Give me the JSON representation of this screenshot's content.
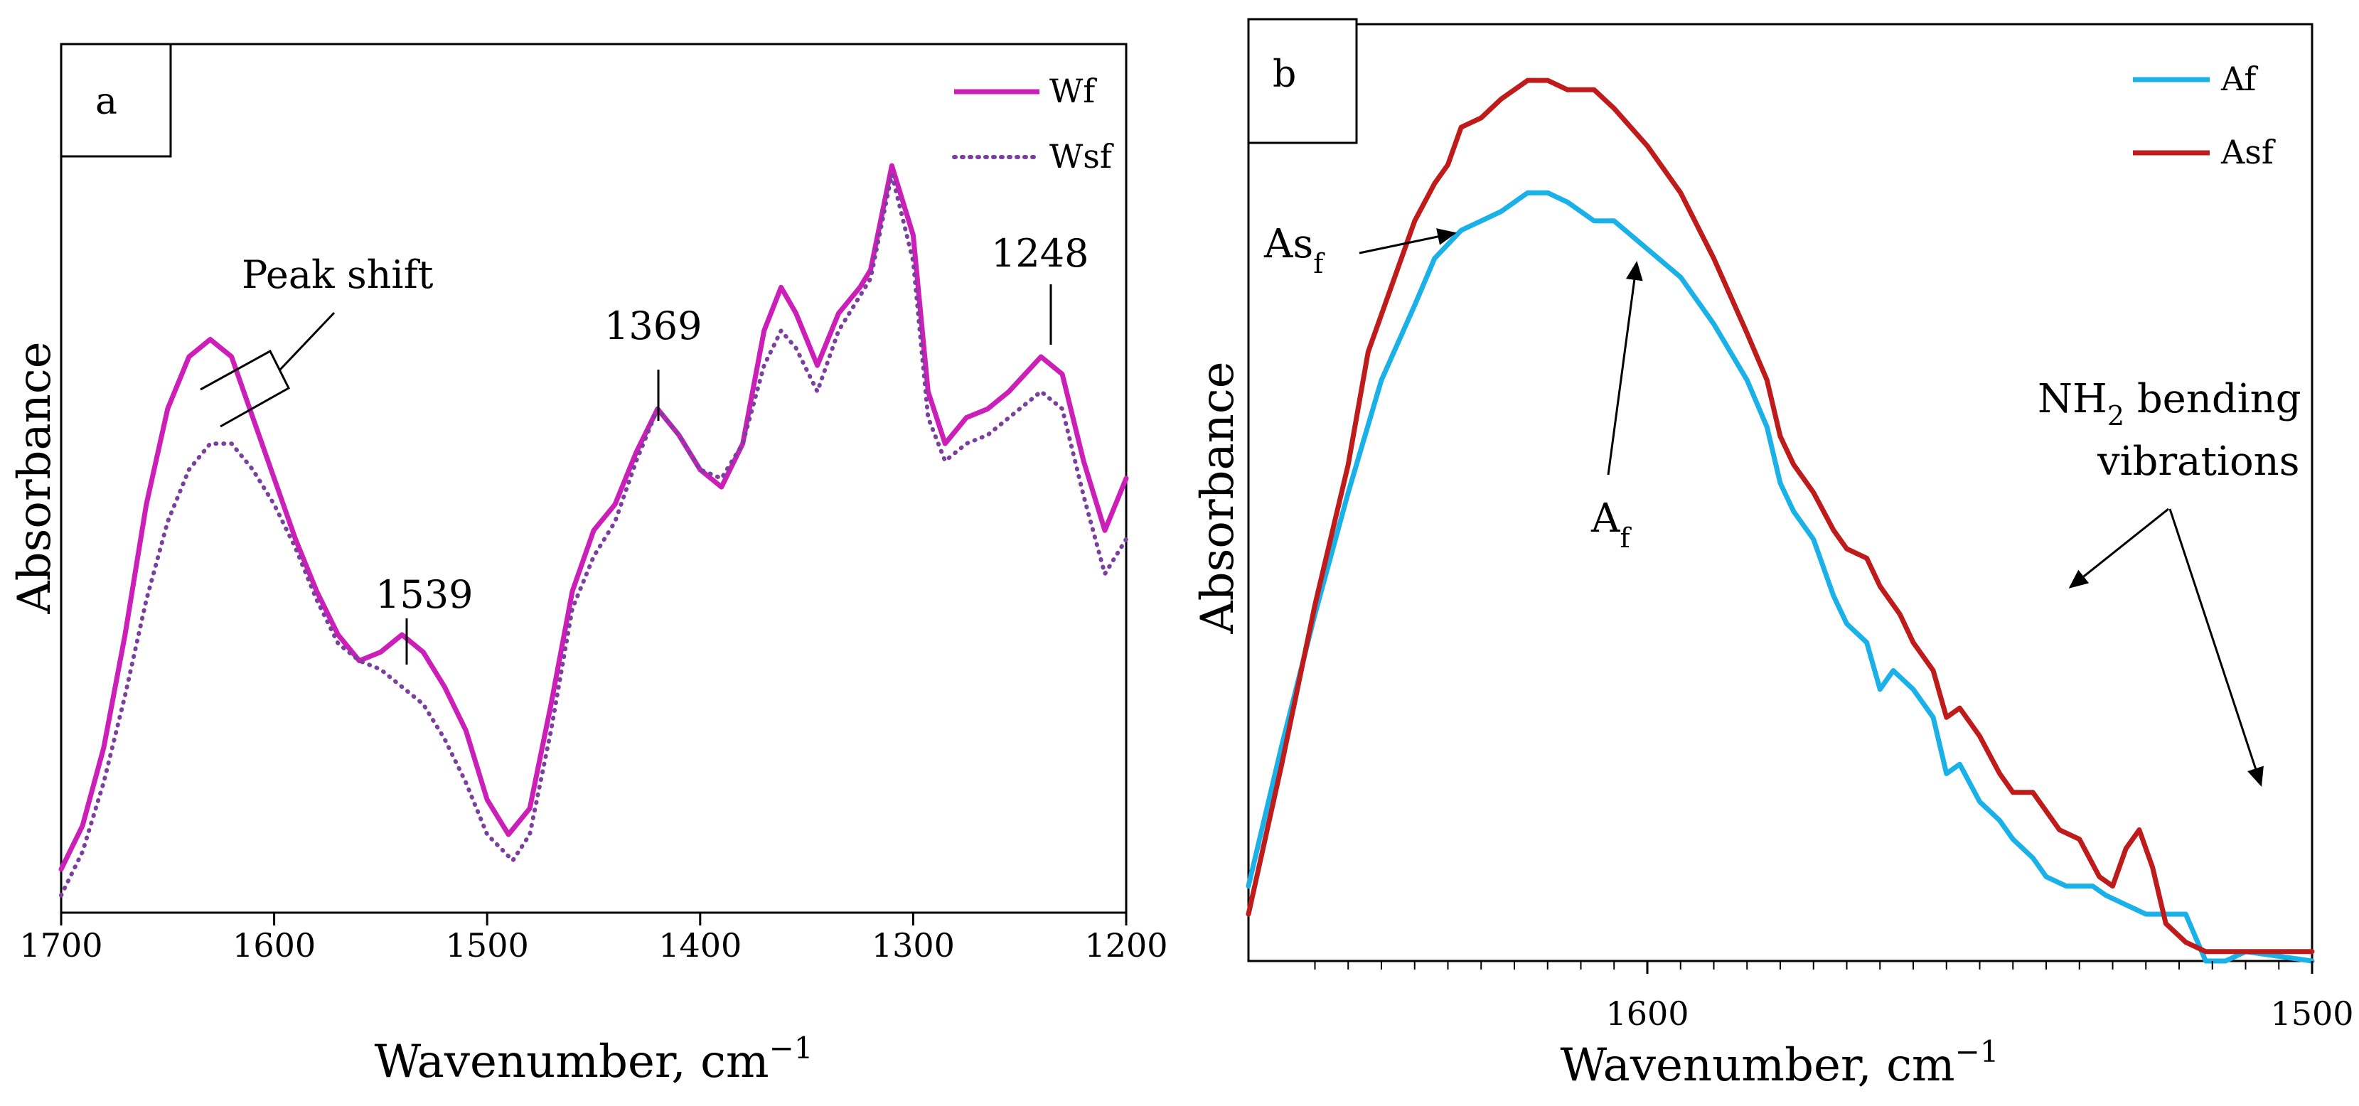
{
  "chart_data": [
    {
      "panel": "a",
      "type": "line",
      "title": "",
      "xlabel": "Wavenumber, cm−1",
      "ylabel": "Absorbance",
      "xlim": [
        1700,
        1200
      ],
      "ylim": [
        0,
        1
      ],
      "x_ticks": [
        "1700",
        "1600",
        "1500",
        "1400",
        "1300",
        "1200"
      ],
      "x_tick_values": [
        1700,
        1600,
        1500,
        1400,
        1300,
        1200
      ],
      "legend_position": "top-right",
      "series": [
        {
          "name": "Wf",
          "color": "#CC1FB8",
          "style": "solid",
          "points": [
            [
              1700,
              0.05
            ],
            [
              1690,
              0.1
            ],
            [
              1680,
              0.19
            ],
            [
              1670,
              0.32
            ],
            [
              1660,
              0.47
            ],
            [
              1650,
              0.58
            ],
            [
              1640,
              0.64
            ],
            [
              1630,
              0.66
            ],
            [
              1620,
              0.64
            ],
            [
              1610,
              0.57
            ],
            [
              1600,
              0.5
            ],
            [
              1590,
              0.43
            ],
            [
              1580,
              0.37
            ],
            [
              1570,
              0.32
            ],
            [
              1560,
              0.29
            ],
            [
              1550,
              0.3
            ],
            [
              1540,
              0.32
            ],
            [
              1530,
              0.3
            ],
            [
              1520,
              0.26
            ],
            [
              1510,
              0.21
            ],
            [
              1500,
              0.13
            ],
            [
              1490,
              0.09
            ],
            [
              1480,
              0.12
            ],
            [
              1470,
              0.24
            ],
            [
              1460,
              0.37
            ],
            [
              1450,
              0.44
            ],
            [
              1440,
              0.47
            ],
            [
              1430,
              0.53
            ],
            [
              1420,
              0.58
            ],
            [
              1410,
              0.55
            ],
            [
              1400,
              0.51
            ],
            [
              1390,
              0.49
            ],
            [
              1380,
              0.54
            ],
            [
              1370,
              0.67
            ],
            [
              1362,
              0.72
            ],
            [
              1355,
              0.69
            ],
            [
              1345,
              0.63
            ],
            [
              1335,
              0.69
            ],
            [
              1325,
              0.72
            ],
            [
              1320,
              0.74
            ],
            [
              1310,
              0.86
            ],
            [
              1300,
              0.78
            ],
            [
              1293,
              0.6
            ],
            [
              1285,
              0.54
            ],
            [
              1275,
              0.57
            ],
            [
              1265,
              0.58
            ],
            [
              1255,
              0.6
            ],
            [
              1240,
              0.64
            ],
            [
              1230,
              0.62
            ],
            [
              1220,
              0.52
            ],
            [
              1210,
              0.44
            ],
            [
              1200,
              0.5
            ]
          ]
        },
        {
          "name": "Wsf",
          "color": "#7B3F9E",
          "style": "dotted",
          "points": [
            [
              1700,
              0.02
            ],
            [
              1690,
              0.07
            ],
            [
              1680,
              0.15
            ],
            [
              1670,
              0.25
            ],
            [
              1660,
              0.36
            ],
            [
              1650,
              0.45
            ],
            [
              1640,
              0.51
            ],
            [
              1630,
              0.54
            ],
            [
              1620,
              0.54
            ],
            [
              1610,
              0.51
            ],
            [
              1600,
              0.47
            ],
            [
              1590,
              0.42
            ],
            [
              1580,
              0.36
            ],
            [
              1570,
              0.31
            ],
            [
              1560,
              0.29
            ],
            [
              1550,
              0.28
            ],
            [
              1540,
              0.26
            ],
            [
              1530,
              0.24
            ],
            [
              1520,
              0.2
            ],
            [
              1510,
              0.15
            ],
            [
              1500,
              0.09
            ],
            [
              1488,
              0.06
            ],
            [
              1480,
              0.09
            ],
            [
              1470,
              0.21
            ],
            [
              1460,
              0.35
            ],
            [
              1450,
              0.41
            ],
            [
              1440,
              0.45
            ],
            [
              1430,
              0.52
            ],
            [
              1420,
              0.58
            ],
            [
              1410,
              0.55
            ],
            [
              1400,
              0.51
            ],
            [
              1390,
              0.5
            ],
            [
              1380,
              0.54
            ],
            [
              1370,
              0.63
            ],
            [
              1362,
              0.67
            ],
            [
              1355,
              0.65
            ],
            [
              1345,
              0.6
            ],
            [
              1335,
              0.67
            ],
            [
              1325,
              0.71
            ],
            [
              1320,
              0.73
            ],
            [
              1310,
              0.85
            ],
            [
              1300,
              0.75
            ],
            [
              1293,
              0.57
            ],
            [
              1285,
              0.52
            ],
            [
              1275,
              0.54
            ],
            [
              1265,
              0.55
            ],
            [
              1255,
              0.57
            ],
            [
              1240,
              0.6
            ],
            [
              1230,
              0.58
            ],
            [
              1220,
              0.48
            ],
            [
              1210,
              0.39
            ],
            [
              1200,
              0.43
            ]
          ]
        }
      ],
      "annotations": [
        "Peak shift",
        "1539",
        "1369",
        "1248"
      ]
    },
    {
      "panel": "b",
      "type": "line",
      "title": "",
      "xlabel": "Wavenumber, cm−1",
      "ylabel": "Absorbance",
      "xlim": [
        1660,
        1500
      ],
      "ylim": [
        0,
        1
      ],
      "x_ticks": [
        "1600",
        "1500"
      ],
      "x_tick_values": [
        1600,
        1500
      ],
      "legend_position": "top-right",
      "series": [
        {
          "name": "Af",
          "color": "#1AB0E8",
          "style": "solid",
          "points": [
            [
              1660,
              0.08
            ],
            [
              1655,
              0.23
            ],
            [
              1650,
              0.37
            ],
            [
              1645,
              0.5
            ],
            [
              1640,
              0.62
            ],
            [
              1635,
              0.7
            ],
            [
              1632,
              0.75
            ],
            [
              1628,
              0.78
            ],
            [
              1625,
              0.79
            ],
            [
              1622,
              0.8
            ],
            [
              1618,
              0.82
            ],
            [
              1615,
              0.82
            ],
            [
              1612,
              0.81
            ],
            [
              1608,
              0.79
            ],
            [
              1605,
              0.79
            ],
            [
              1600,
              0.76
            ],
            [
              1595,
              0.73
            ],
            [
              1590,
              0.68
            ],
            [
              1585,
              0.62
            ],
            [
              1582,
              0.57
            ],
            [
              1580,
              0.51
            ],
            [
              1578,
              0.48
            ],
            [
              1575,
              0.45
            ],
            [
              1572,
              0.39
            ],
            [
              1570,
              0.36
            ],
            [
              1567,
              0.34
            ],
            [
              1565,
              0.29
            ],
            [
              1563,
              0.31
            ],
            [
              1560,
              0.29
            ],
            [
              1557,
              0.26
            ],
            [
              1555,
              0.2
            ],
            [
              1553,
              0.21
            ],
            [
              1550,
              0.17
            ],
            [
              1547,
              0.15
            ],
            [
              1545,
              0.13
            ],
            [
              1542,
              0.11
            ],
            [
              1540,
              0.09
            ],
            [
              1537,
              0.08
            ],
            [
              1535,
              0.08
            ],
            [
              1533,
              0.08
            ],
            [
              1531,
              0.07
            ],
            [
              1528,
              0.06
            ],
            [
              1525,
              0.05
            ],
            [
              1522,
              0.05
            ],
            [
              1519,
              0.05
            ],
            [
              1516,
              0.0
            ],
            [
              1513,
              0.0
            ],
            [
              1510,
              0.01
            ],
            [
              1500,
              0.0
            ]
          ]
        },
        {
          "name": "Asf",
          "color": "#C01B1B",
          "style": "solid",
          "points": [
            [
              1660,
              0.05
            ],
            [
              1655,
              0.21
            ],
            [
              1650,
              0.38
            ],
            [
              1645,
              0.53
            ],
            [
              1642,
              0.65
            ],
            [
              1638,
              0.73
            ],
            [
              1635,
              0.79
            ],
            [
              1632,
              0.83
            ],
            [
              1630,
              0.85
            ],
            [
              1628,
              0.89
            ],
            [
              1625,
              0.9
            ],
            [
              1622,
              0.92
            ],
            [
              1618,
              0.94
            ],
            [
              1615,
              0.94
            ],
            [
              1612,
              0.93
            ],
            [
              1608,
              0.93
            ],
            [
              1605,
              0.91
            ],
            [
              1600,
              0.87
            ],
            [
              1595,
              0.82
            ],
            [
              1590,
              0.75
            ],
            [
              1585,
              0.67
            ],
            [
              1582,
              0.62
            ],
            [
              1580,
              0.56
            ],
            [
              1578,
              0.53
            ],
            [
              1575,
              0.5
            ],
            [
              1572,
              0.46
            ],
            [
              1570,
              0.44
            ],
            [
              1567,
              0.43
            ],
            [
              1565,
              0.4
            ],
            [
              1562,
              0.37
            ],
            [
              1560,
              0.34
            ],
            [
              1557,
              0.31
            ],
            [
              1555,
              0.26
            ],
            [
              1553,
              0.27
            ],
            [
              1550,
              0.24
            ],
            [
              1547,
              0.2
            ],
            [
              1545,
              0.18
            ],
            [
              1542,
              0.18
            ],
            [
              1540,
              0.16
            ],
            [
              1538,
              0.14
            ],
            [
              1535,
              0.13
            ],
            [
              1532,
              0.09
            ],
            [
              1530,
              0.08
            ],
            [
              1528,
              0.12
            ],
            [
              1526,
              0.14
            ],
            [
              1524,
              0.1
            ],
            [
              1522,
              0.04
            ],
            [
              1519,
              0.02
            ],
            [
              1516,
              0.01
            ],
            [
              1500,
              0.01
            ]
          ]
        }
      ],
      "annotations": [
        "Asf",
        "Af",
        "NH2 bending vibrations"
      ]
    }
  ],
  "panel_a": {
    "label": "a",
    "legend": [
      "Wf",
      "Wsf"
    ],
    "ylabel": "Absorbance",
    "xlabel_main": "Wavenumber, cm",
    "xlabel_sup": "−1",
    "annotations": {
      "peak_shift": "Peak shift",
      "p1539": "1539",
      "p1369": "1369",
      "p1248": "1248"
    }
  },
  "panel_b": {
    "label": "b",
    "legend": [
      "Af",
      "Asf"
    ],
    "ylabel": "Absorbance",
    "xlabel_main": "Wavenumber, cm",
    "xlabel_sup": "−1",
    "annotations": {
      "asf_main": "As",
      "asf_sub": "f",
      "af_main": "A",
      "af_sub": "f",
      "nh2_line1_a": "NH",
      "nh2_line1_sub": "2",
      "nh2_line1_b": " bending",
      "nh2_line2": "vibrations"
    }
  }
}
